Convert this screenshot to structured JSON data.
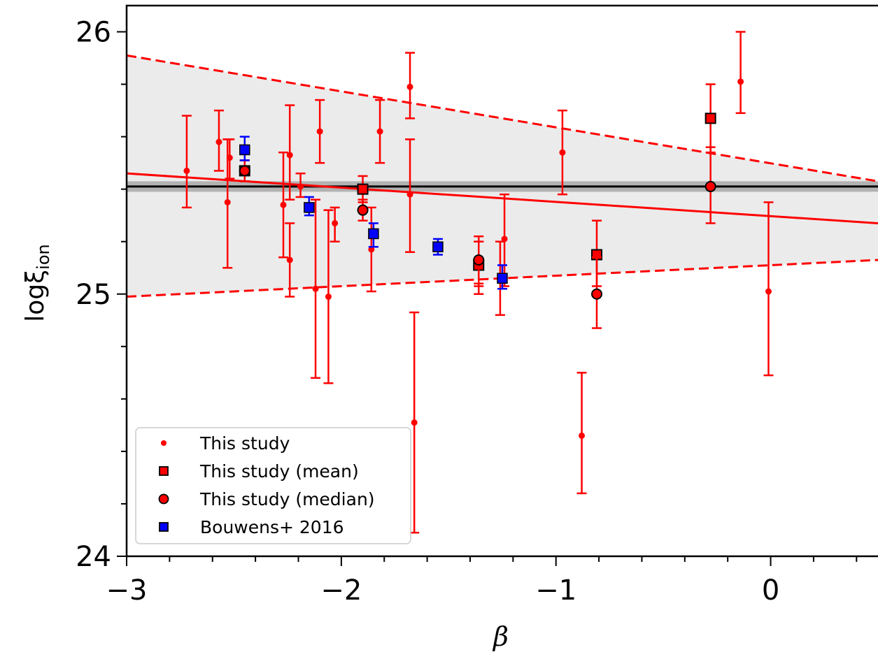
{
  "chart_data": {
    "type": "scatter",
    "title": "",
    "xlabel": "β",
    "ylabel_main": "logξ",
    "ylabel_sub": "ion",
    "xlim": [
      -3,
      0.5
    ],
    "ylim": [
      24,
      26.1
    ],
    "xticks": [
      -3,
      -2,
      -1,
      0
    ],
    "xtick_labels": [
      "−3",
      "−2",
      "−1",
      "0"
    ],
    "yticks": [
      24,
      25,
      26
    ],
    "ytick_labels": [
      "24",
      "25",
      "26"
    ],
    "grid": false,
    "legend_position": "lower-left",
    "legend": [
      {
        "label": "This study",
        "marker": "dot",
        "color": "#ff0000"
      },
      {
        "label": "This study (mean)",
        "marker": "square",
        "color": "#ff0000"
      },
      {
        "label": "This study (median)",
        "marker": "circle",
        "color": "#ff0000"
      },
      {
        "label": "Bouwens+ 2016",
        "marker": "square",
        "color": "#0000ff"
      }
    ],
    "horizontal_line": {
      "y": 25.41,
      "band": [
        25.39,
        25.43
      ],
      "color": "#000000"
    },
    "fit": {
      "line": [
        [
          -3,
          25.46
        ],
        [
          0.5,
          25.27
        ]
      ],
      "upper": [
        [
          -3,
          25.91
        ],
        [
          0.5,
          25.43
        ]
      ],
      "lower": [
        [
          -3,
          24.99
        ],
        [
          0.5,
          25.13
        ]
      ],
      "color": "#ff0000",
      "band_color": "#ebebeb"
    },
    "series": [
      {
        "name": "This study",
        "color": "#ff0000",
        "points": [
          {
            "x": -2.72,
            "y": 25.47,
            "ylo": 25.33,
            "yhi": 25.68
          },
          {
            "x": -2.57,
            "y": 25.58,
            "ylo": 25.47,
            "yhi": 25.7
          },
          {
            "x": -2.53,
            "y": 25.35,
            "ylo": 25.1,
            "yhi": 25.59
          },
          {
            "x": -2.52,
            "y": 25.52,
            "ylo": 25.44,
            "yhi": 25.59
          },
          {
            "x": -2.27,
            "y": 25.34,
            "ylo": 25.14,
            "yhi": 25.54
          },
          {
            "x": -2.24,
            "y": 25.53,
            "ylo": 25.36,
            "yhi": 25.72
          },
          {
            "x": -2.24,
            "y": 25.13,
            "ylo": 24.99,
            "yhi": 25.27
          },
          {
            "x": -2.19,
            "y": 25.41,
            "ylo": 25.37,
            "yhi": 25.46
          },
          {
            "x": -2.12,
            "y": 25.02,
            "ylo": 24.68,
            "yhi": 25.36
          },
          {
            "x": -2.1,
            "y": 25.62,
            "ylo": 25.5,
            "yhi": 25.74
          },
          {
            "x": -2.06,
            "y": 24.99,
            "ylo": 24.66,
            "yhi": 25.32
          },
          {
            "x": -2.03,
            "y": 25.27,
            "ylo": 25.2,
            "yhi": 25.33
          },
          {
            "x": -1.86,
            "y": 25.17,
            "ylo": 25.01,
            "yhi": 25.33
          },
          {
            "x": -1.82,
            "y": 25.62,
            "ylo": 25.5,
            "yhi": 25.74
          },
          {
            "x": -1.68,
            "y": 25.79,
            "ylo": 25.67,
            "yhi": 25.92
          },
          {
            "x": -1.68,
            "y": 25.38,
            "ylo": 25.16,
            "yhi": 25.59
          },
          {
            "x": -1.66,
            "y": 24.51,
            "ylo": 24.09,
            "yhi": 24.93
          },
          {
            "x": -1.36,
            "y": 25.1,
            "ylo": 25.0,
            "yhi": 25.2
          },
          {
            "x": -1.26,
            "y": 25.06,
            "ylo": 24.92,
            "yhi": 25.2
          },
          {
            "x": -1.24,
            "y": 25.21,
            "ylo": 25.03,
            "yhi": 25.38
          },
          {
            "x": -0.97,
            "y": 25.54,
            "ylo": 25.38,
            "yhi": 25.7
          },
          {
            "x": -0.88,
            "y": 24.46,
            "ylo": 24.24,
            "yhi": 24.7
          },
          {
            "x": -0.14,
            "y": 25.81,
            "ylo": 25.69,
            "yhi": 26.0
          },
          {
            "x": -0.01,
            "y": 25.01,
            "ylo": 24.69,
            "yhi": 25.35
          }
        ]
      },
      {
        "name": "This study (mean)",
        "color": "#ff0000",
        "points": [
          {
            "x": -2.45,
            "y": 25.47,
            "ylo": 25.43,
            "yhi": 25.51
          },
          {
            "x": -1.9,
            "y": 25.4,
            "ylo": 25.35,
            "yhi": 25.45
          },
          {
            "x": -1.36,
            "y": 25.11,
            "ylo": 25.03,
            "yhi": 25.2
          },
          {
            "x": -0.81,
            "y": 25.15,
            "ylo": 25.03,
            "yhi": 25.28
          },
          {
            "x": -0.28,
            "y": 25.67,
            "ylo": 25.54,
            "yhi": 25.8
          }
        ]
      },
      {
        "name": "This study (median)",
        "color": "#ff0000",
        "points": [
          {
            "x": -2.45,
            "y": 25.47,
            "ylo": 25.43,
            "yhi": 25.51
          },
          {
            "x": -1.9,
            "y": 25.32,
            "ylo": 25.28,
            "yhi": 25.36
          },
          {
            "x": -1.36,
            "y": 25.13,
            "ylo": 25.04,
            "yhi": 25.22
          },
          {
            "x": -0.81,
            "y": 25.0,
            "ylo": 24.87,
            "yhi": 25.14
          },
          {
            "x": -0.28,
            "y": 25.41,
            "ylo": 25.27,
            "yhi": 25.56
          }
        ]
      },
      {
        "name": "Bouwens+ 2016",
        "color": "#0000ff",
        "points": [
          {
            "x": -2.45,
            "y": 25.55,
            "ylo": 25.51,
            "yhi": 25.6
          },
          {
            "x": -2.15,
            "y": 25.33,
            "ylo": 25.3,
            "yhi": 25.37
          },
          {
            "x": -1.85,
            "y": 25.23,
            "ylo": 25.18,
            "yhi": 25.27
          },
          {
            "x": -1.55,
            "y": 25.18,
            "ylo": 25.15,
            "yhi": 25.21
          },
          {
            "x": -1.25,
            "y": 25.06,
            "ylo": 25.02,
            "yhi": 25.11
          }
        ]
      }
    ]
  }
}
